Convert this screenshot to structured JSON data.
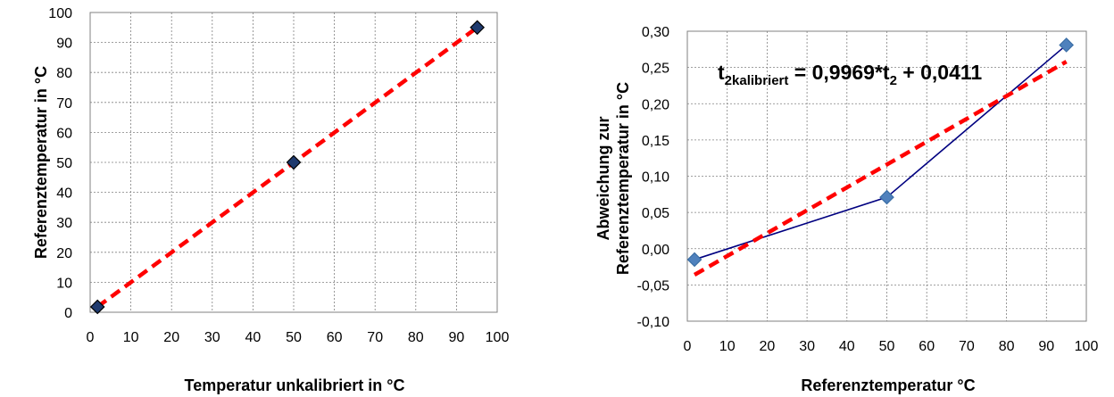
{
  "chart_data": [
    {
      "type": "scatter",
      "xlabel": "Temperatur unkalibriert in °C",
      "ylabel": "Referenztemperatur in °C",
      "xlim": [
        0,
        100
      ],
      "ylim": [
        0,
        100
      ],
      "x_ticks": [
        "0",
        "10",
        "20",
        "30",
        "40",
        "50",
        "60",
        "70",
        "80",
        "90",
        "100"
      ],
      "y_ticks": [
        "0",
        "10",
        "20",
        "30",
        "40",
        "50",
        "60",
        "70",
        "80",
        "90",
        "100"
      ],
      "grid": true,
      "series": [
        {
          "kind": "markers",
          "marker": "diamond",
          "color": "#1F3A6E",
          "x": [
            1.8,
            50.0,
            95.1
          ],
          "y": [
            1.8,
            50.0,
            95.0
          ]
        },
        {
          "kind": "trendline",
          "style": "dashed",
          "color": "#FF0000",
          "x": [
            1.8,
            95.1
          ],
          "y": [
            1.8,
            95.0
          ]
        }
      ]
    },
    {
      "type": "line",
      "xlabel": "Referenztemperatur °C",
      "ylabel_lines": [
        "Abweichung zur",
        "Referenztemperatur  in °C"
      ],
      "xlim": [
        0,
        100
      ],
      "ylim": [
        -0.1,
        0.3
      ],
      "x_ticks": [
        "0",
        "10",
        "20",
        "30",
        "40",
        "50",
        "60",
        "70",
        "80",
        "90",
        "100"
      ],
      "y_ticks": [
        "-0,10",
        "-0,05",
        "0,00",
        "0,05",
        "0,10",
        "0,15",
        "0,20",
        "0,25",
        "0,30"
      ],
      "grid": true,
      "annotation": {
        "main": "t",
        "sub1": "2kalibriert",
        "mid": " = 0,9969*t",
        "sub2": "2",
        "tail": " + 0,0411"
      },
      "series": [
        {
          "kind": "line-markers",
          "marker": "diamond",
          "color": "#000080",
          "marker_color": "#4F81BD",
          "x": [
            1.8,
            50.0,
            95.0
          ],
          "y": [
            -0.015,
            0.071,
            0.281
          ]
        },
        {
          "kind": "trendline",
          "style": "dashed",
          "color": "#FF0000",
          "x": [
            1.8,
            95.0
          ],
          "y": [
            -0.036,
            0.258
          ]
        }
      ]
    }
  ]
}
